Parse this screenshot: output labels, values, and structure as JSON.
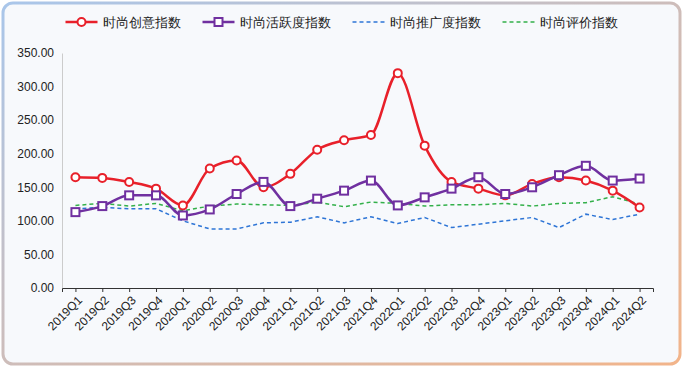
{
  "chart_data": {
    "type": "line",
    "categories": [
      "2019Q1",
      "2019Q2",
      "2019Q3",
      "2019Q4",
      "2020Q1",
      "2020Q2",
      "2020Q3",
      "2020Q4",
      "2021Q1",
      "2021Q2",
      "2021Q3",
      "2021Q4",
      "2022Q1",
      "2022Q2",
      "2022Q3",
      "2022Q4",
      "2023Q1",
      "2023Q2",
      "2023Q3",
      "2023Q4",
      "2024Q1",
      "2024Q2"
    ],
    "series": [
      {
        "name": "时尚创意指数",
        "color": "#e8202a",
        "marker": "circle",
        "line_style": "solid",
        "values": [
          165,
          164,
          158,
          148,
          123,
          178,
          190,
          150,
          170,
          206,
          220,
          228,
          320,
          212,
          158,
          148,
          138,
          155,
          165,
          160,
          145,
          120
        ]
      },
      {
        "name": "时尚活跃度指数",
        "color": "#7030a0",
        "marker": "square",
        "line_style": "solid",
        "values": [
          113,
          122,
          138,
          138,
          108,
          117,
          140,
          158,
          122,
          133,
          145,
          160,
          123,
          135,
          148,
          165,
          140,
          150,
          168,
          182,
          160,
          163
        ]
      },
      {
        "name": "时尚推广度指数",
        "color": "#2e75d6",
        "marker": "none",
        "line_style": "dashed",
        "values": [
          118,
          120,
          118,
          118,
          100,
          88,
          88,
          97,
          98,
          106,
          97,
          106,
          96,
          105,
          90,
          95,
          100,
          105,
          90,
          110,
          102,
          110
        ]
      },
      {
        "name": "时尚评价指数",
        "color": "#33b04a",
        "marker": "none",
        "line_style": "dashed",
        "values": [
          123,
          126,
          122,
          126,
          115,
          122,
          125,
          124,
          123,
          128,
          121,
          128,
          126,
          122,
          124,
          124,
          126,
          122,
          126,
          127,
          136,
          125
        ]
      }
    ],
    "ylim": [
      0,
      350
    ],
    "yticks": [
      {
        "value": 0,
        "label": "0.00"
      },
      {
        "value": 50,
        "label": "50.00"
      },
      {
        "value": 100,
        "label": "100.00"
      },
      {
        "value": 150,
        "label": "150.00"
      },
      {
        "value": 200,
        "label": "200.00"
      },
      {
        "value": 250,
        "label": "250.00"
      },
      {
        "value": 300,
        "label": "300.00"
      },
      {
        "value": 350,
        "label": "350.00"
      }
    ],
    "grid": false,
    "legend": "top"
  }
}
